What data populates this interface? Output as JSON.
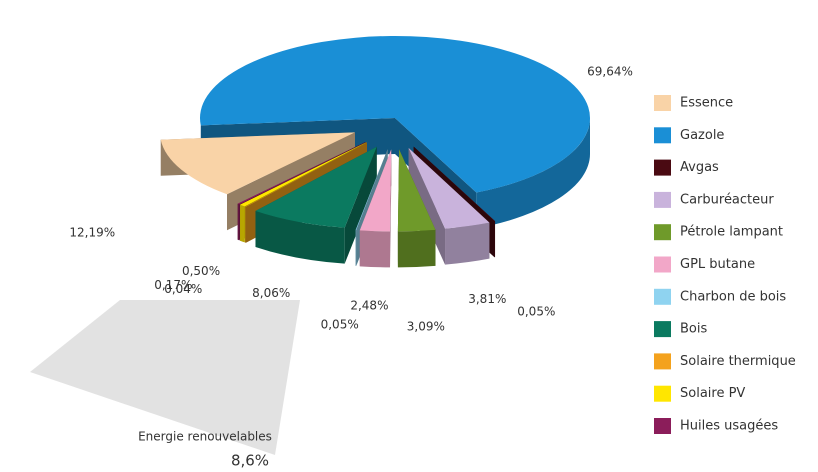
{
  "chart_data": {
    "type": "pie",
    "categories": [
      "Essence",
      "Gazole",
      "Avgas",
      "Carburéacteur",
      "Pétrole lampant",
      "GPL butane",
      "Charbon de bois",
      "Bois",
      "Solaire thermique",
      "Solaire PV",
      "Huiles usagées"
    ],
    "values": [
      12.19,
      69.64,
      0.05,
      3.81,
      3.09,
      2.48,
      0.05,
      8.06,
      0.04,
      0.5,
      0.17
    ],
    "value_labels": [
      "12,19%",
      "69,64%",
      "0,05%",
      "3,81%",
      "3,09%",
      "2,48%",
      "0,05%",
      "8,06%",
      "0,04%",
      "0,50%",
      "0,17%"
    ],
    "colors": [
      "#f9d3a7",
      "#1a8fd6",
      "#4a0a12",
      "#c9b3dc",
      "#6f9a2a",
      "#f2a7c8",
      "#8fd3f0",
      "#0b7a60",
      "#f4a21d",
      "#ffe600",
      "#8b1d5a"
    ],
    "annotation": {
      "text": "Energie renouvelables",
      "value": 8.6,
      "value_label": "8,6%"
    },
    "legend": "right"
  }
}
